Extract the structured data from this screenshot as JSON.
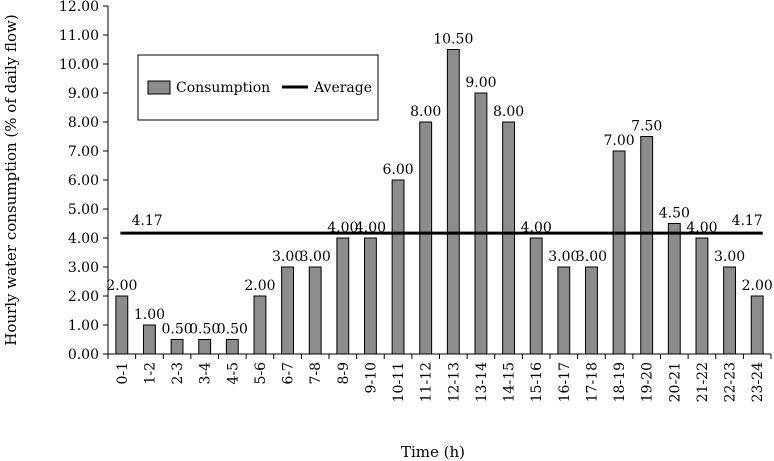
{
  "chart_data": {
    "type": "bar",
    "title": "",
    "xlabel": "Time (h)",
    "ylabel": "Hourly water consumption (% of daily flow)",
    "ylim": [
      0,
      12
    ],
    "ytick_step": 1,
    "ytick_labels": [
      "0.00",
      "1.00",
      "2.00",
      "3.00",
      "4.00",
      "5.00",
      "6.00",
      "7.00",
      "8.00",
      "9.00",
      "10.00",
      "11.00",
      "12.00"
    ],
    "categories": [
      "0-1",
      "1-2",
      "2-3",
      "3-4",
      "4-5",
      "5-6",
      "6-7",
      "7-8",
      "8-9",
      "9-10",
      "10-11",
      "11-12",
      "12-13",
      "13-14",
      "14-15",
      "15-16",
      "16-17",
      "17-18",
      "18-19",
      "19-20",
      "20-21",
      "21-22",
      "22-23",
      "23-24"
    ],
    "series": [
      {
        "name": "Consumption",
        "kind": "bar",
        "color": "#8c8c8c",
        "values": [
          2.0,
          1.0,
          0.5,
          0.5,
          0.5,
          2.0,
          3.0,
          3.0,
          4.0,
          4.0,
          6.0,
          8.0,
          10.5,
          9.0,
          8.0,
          4.0,
          3.0,
          3.0,
          7.0,
          7.5,
          4.5,
          4.0,
          3.0,
          2.0
        ],
        "value_labels": [
          "2.00",
          "1.00",
          "0.50",
          "0.50",
          "0.50",
          "2.00",
          "3.00",
          "3.00",
          "4.00",
          "4.00",
          "6.00",
          "8.00",
          "10.50",
          "9.00",
          "8.00",
          "4.00",
          "3.00",
          "3.00",
          "7.00",
          "7.50",
          "4.50",
          "4.00",
          "3.00",
          "2.00"
        ]
      },
      {
        "name": "Average",
        "kind": "line",
        "color": "#000000",
        "value": 4.17,
        "value_labels": [
          "4.17",
          "4.17"
        ]
      }
    ],
    "legend": {
      "position": "top-left",
      "entries": [
        "Consumption",
        "Average"
      ]
    }
  }
}
